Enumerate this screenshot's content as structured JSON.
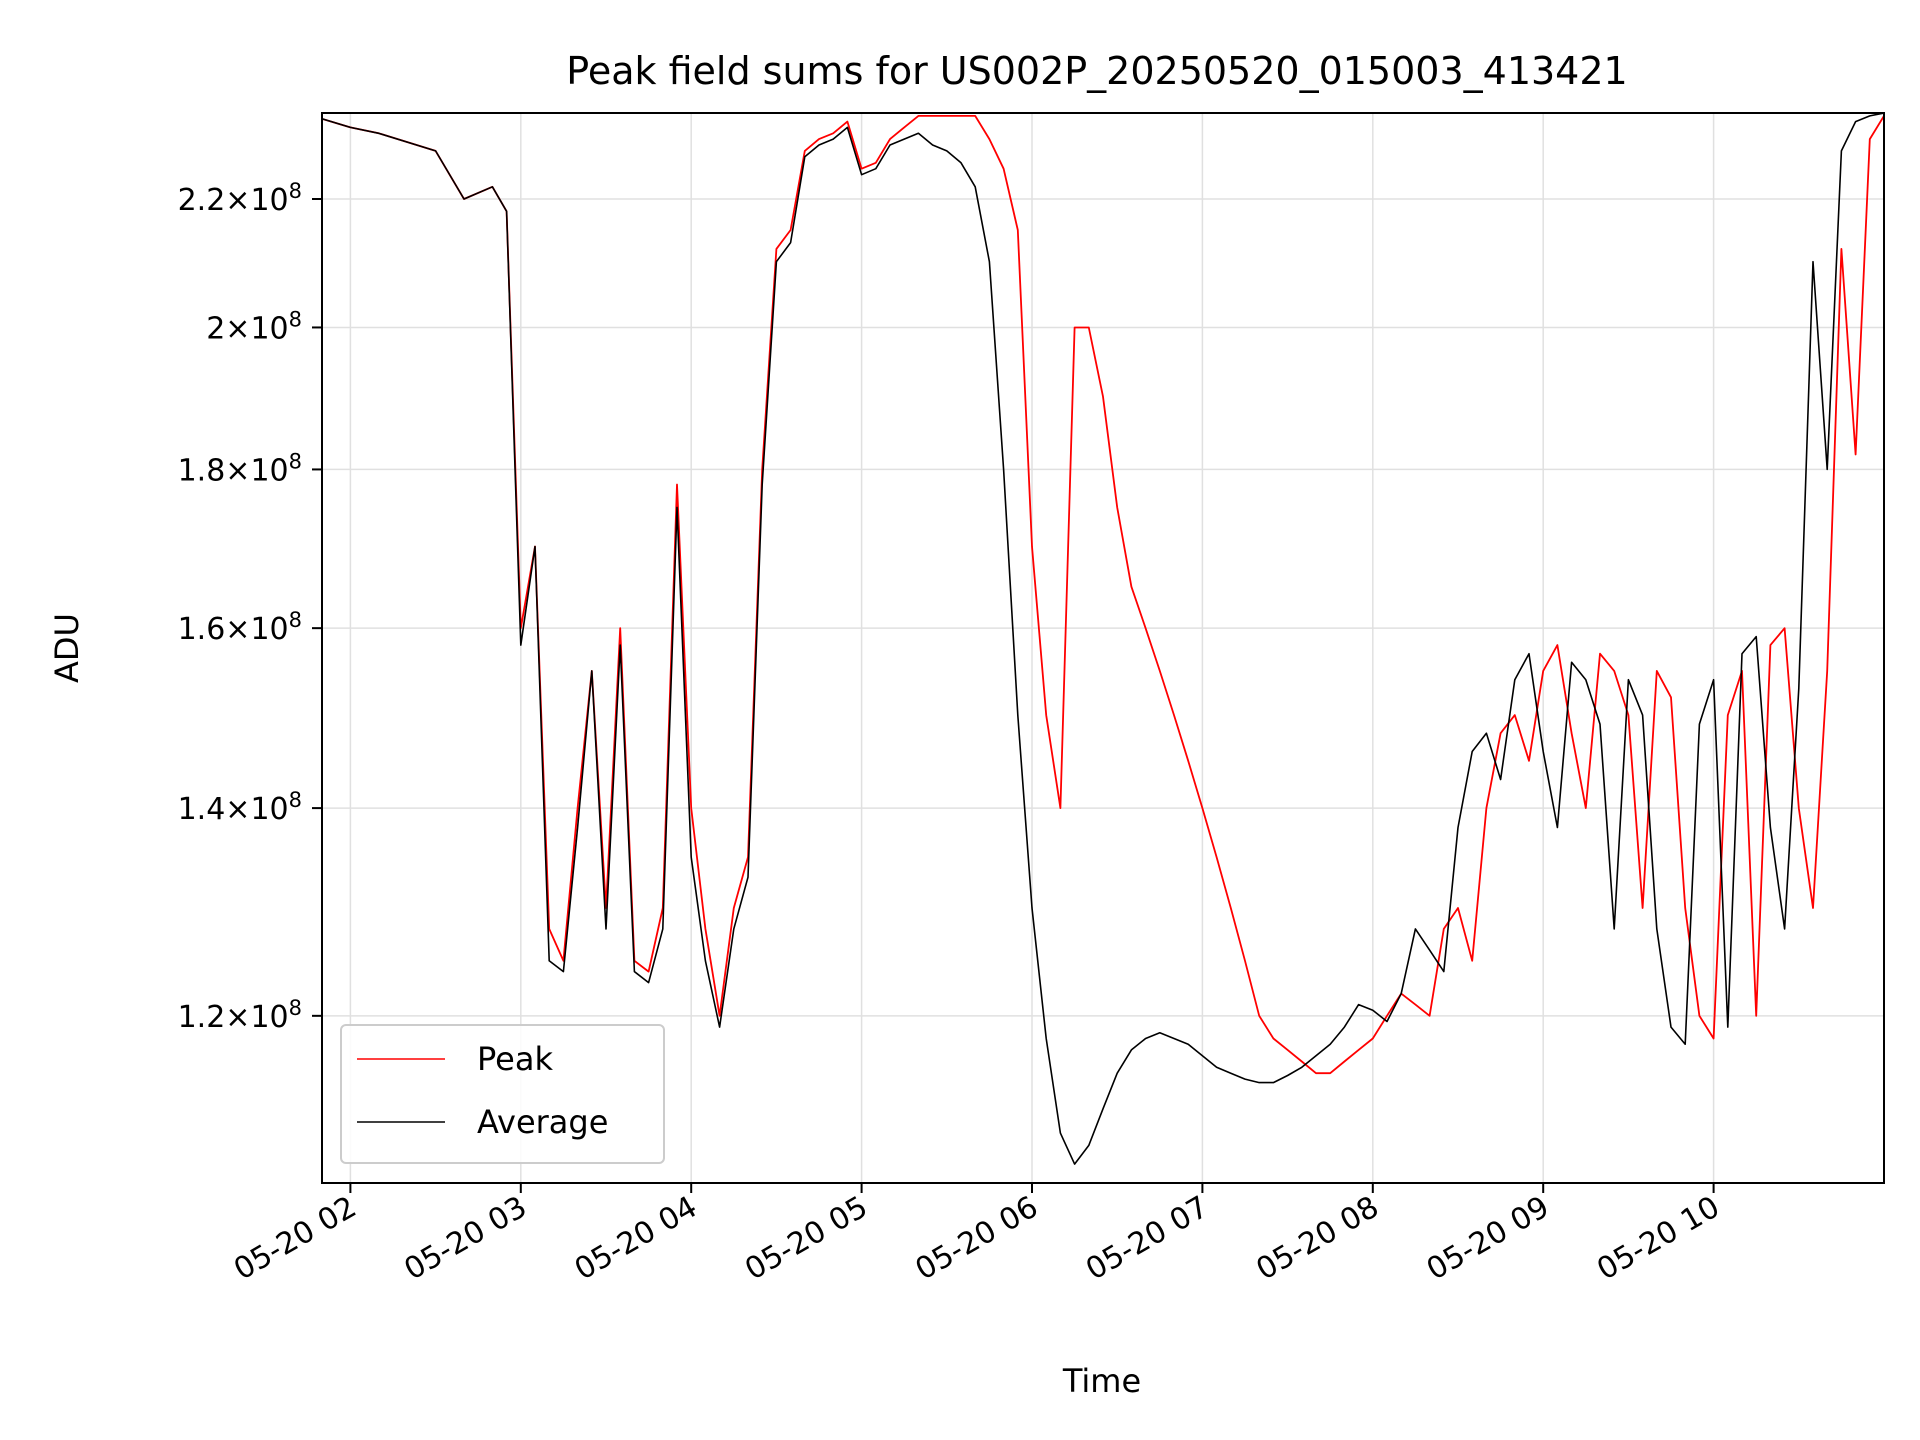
{
  "chart_data": {
    "type": "line",
    "title": "Peak field sums for US002P_20250520_015003_413421",
    "xlabel": "Time",
    "ylabel": "ADU",
    "y_scale": "log",
    "x_range": [
      "05-20 01:50",
      "05-20 11:00"
    ],
    "ylim": [
      106000000,
      234500000
    ],
    "grid": true,
    "legend_position": "lower-left",
    "x_ticks": [
      "05-20 02",
      "05-20 03",
      "05-20 04",
      "05-20 05",
      "05-20 06",
      "05-20 07",
      "05-20 08",
      "05-20 09",
      "05-20 10"
    ],
    "y_ticks": [
      {
        "value": 120000000,
        "base": "1.2",
        "sup": "8"
      },
      {
        "value": 140000000,
        "base": "1.4",
        "sup": "8"
      },
      {
        "value": 160000000,
        "base": "1.6",
        "sup": "8"
      },
      {
        "value": 180000000,
        "base": "1.8",
        "sup": "8"
      },
      {
        "value": 200000000,
        "base": "2",
        "sup": "8"
      },
      {
        "value": 220000000,
        "base": "2.2",
        "sup": "8"
      }
    ],
    "x": [
      "05-20 01:50",
      "05-20 02:00",
      "05-20 02:10",
      "05-20 02:30",
      "05-20 02:40",
      "05-20 02:50",
      "05-20 02:55",
      "05-20 03:00",
      "05-20 03:05",
      "05-20 03:10",
      "05-20 03:15",
      "05-20 03:20",
      "05-20 03:25",
      "05-20 03:30",
      "05-20 03:35",
      "05-20 03:40",
      "05-20 03:45",
      "05-20 03:50",
      "05-20 03:55",
      "05-20 04:00",
      "05-20 04:05",
      "05-20 04:10",
      "05-20 04:15",
      "05-20 04:20",
      "05-20 04:25",
      "05-20 04:30",
      "05-20 04:35",
      "05-20 04:40",
      "05-20 04:45",
      "05-20 04:50",
      "05-20 04:55",
      "05-20 05:00",
      "05-20 05:05",
      "05-20 05:10",
      "05-20 05:15",
      "05-20 05:20",
      "05-20 05:25",
      "05-20 05:30",
      "05-20 05:35",
      "05-20 05:40",
      "05-20 05:45",
      "05-20 05:50",
      "05-20 05:55",
      "05-20 06:00",
      "05-20 06:05",
      "05-20 06:10",
      "05-20 06:15",
      "05-20 06:20",
      "05-20 06:25",
      "05-20 06:30",
      "05-20 06:35",
      "05-20 06:40",
      "05-20 06:45",
      "05-20 06:50",
      "05-20 06:55",
      "05-20 07:00",
      "05-20 07:05",
      "05-20 07:10",
      "05-20 07:15",
      "05-20 07:20",
      "05-20 07:25",
      "05-20 07:30",
      "05-20 07:35",
      "05-20 07:40",
      "05-20 07:45",
      "05-20 07:50",
      "05-20 07:55",
      "05-20 08:00",
      "05-20 08:05",
      "05-20 08:10",
      "05-20 08:15",
      "05-20 08:20",
      "05-20 08:25",
      "05-20 08:30",
      "05-20 08:35",
      "05-20 08:40",
      "05-20 08:45",
      "05-20 08:50",
      "05-20 08:55",
      "05-20 09:00",
      "05-20 09:05",
      "05-20 09:10",
      "05-20 09:15",
      "05-20 09:20",
      "05-20 09:25",
      "05-20 09:30",
      "05-20 09:35",
      "05-20 09:40",
      "05-20 09:45",
      "05-20 09:50",
      "05-20 09:55",
      "05-20 10:00",
      "05-20 10:05",
      "05-20 10:10",
      "05-20 10:15",
      "05-20 10:20",
      "05-20 10:25",
      "05-20 10:30",
      "05-20 10:35",
      "05-20 10:40",
      "05-20 10:45",
      "05-20 10:50",
      "05-20 10:55",
      "05-20 11:00"
    ],
    "series": [
      {
        "name": "Peak",
        "color": "#ff0000",
        "values": [
          233500000,
          232000000,
          231000000,
          228000000,
          220000000,
          222000000,
          218000000,
          160000000,
          170000000,
          128000000,
          125000000,
          140000000,
          155000000,
          130000000,
          160000000,
          125000000,
          124000000,
          130000000,
          178000000,
          140000000,
          128000000,
          120000000,
          130000000,
          135000000,
          180000000,
          212000000,
          215000000,
          228000000,
          230000000,
          231000000,
          233000000,
          225000000,
          226000000,
          230000000,
          232000000,
          234000000,
          234000000,
          234000000,
          234000000,
          234000000,
          230000000,
          225000000,
          215000000,
          170000000,
          150000000,
          140000000,
          200000000,
          200000000,
          190000000,
          175000000,
          165000000,
          160000000,
          155000000,
          150000000,
          145000000,
          140000000,
          135000000,
          130000000,
          125000000,
          120000000,
          118000000,
          117000000,
          116000000,
          115000000,
          115000000,
          116000000,
          117000000,
          118000000,
          120000000,
          122000000,
          121000000,
          120000000,
          128000000,
          130000000,
          125000000,
          140000000,
          148000000,
          150000000,
          145000000,
          155000000,
          158000000,
          148000000,
          140000000,
          157000000,
          155000000,
          150000000,
          130000000,
          155000000,
          152000000,
          130000000,
          120000000,
          118000000,
          150000000,
          155000000,
          120000000,
          158000000,
          160000000,
          140000000,
          130000000,
          155000000,
          212000000,
          182000000,
          230000000,
          234000000
        ]
      },
      {
        "name": "Average",
        "color": "#000000",
        "values": [
          233500000,
          232000000,
          231000000,
          228000000,
          220000000,
          222000000,
          218000000,
          158000000,
          170000000,
          125000000,
          124000000,
          138000000,
          155000000,
          128000000,
          158000000,
          124000000,
          123000000,
          128000000,
          175000000,
          135000000,
          125000000,
          119000000,
          128000000,
          133000000,
          178000000,
          210000000,
          213000000,
          227000000,
          229000000,
          230000000,
          232000000,
          224000000,
          225000000,
          229000000,
          230000000,
          231000000,
          229000000,
          228000000,
          226000000,
          222000000,
          210000000,
          180000000,
          150000000,
          130000000,
          118000000,
          110000000,
          107500000,
          109000000,
          112000000,
          115000000,
          117000000,
          118000000,
          118500000,
          118000000,
          117500000,
          116500000,
          115500000,
          115000000,
          114500000,
          114200000,
          114200000,
          114800000,
          115500000,
          116500000,
          117500000,
          119000000,
          121000000,
          120500000,
          119500000,
          122000000,
          128000000,
          126000000,
          124000000,
          138000000,
          146000000,
          148000000,
          143000000,
          154000000,
          157000000,
          146000000,
          138000000,
          156000000,
          154000000,
          149000000,
          128000000,
          154000000,
          150000000,
          128000000,
          119000000,
          117500000,
          149000000,
          154000000,
          119000000,
          157000000,
          159000000,
          138000000,
          128000000,
          153000000,
          210000000,
          180000000,
          228000000,
          233000000,
          234000000,
          234500000
        ]
      }
    ]
  }
}
